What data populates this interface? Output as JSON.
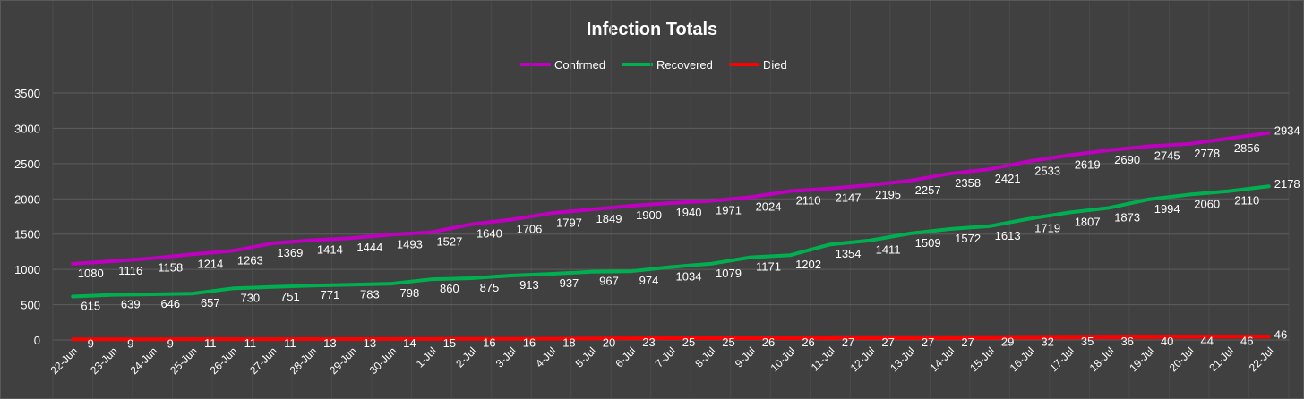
{
  "chart_data": {
    "type": "line",
    "title": "Infection Totals",
    "xlabel": "",
    "ylabel": "",
    "ylim": [
      0,
      3500
    ],
    "yticks": [
      0,
      500,
      1000,
      1500,
      2000,
      2500,
      3000,
      3500
    ],
    "grid": true,
    "legend_position": "top",
    "categories": [
      "22-Jun",
      "23-Jun",
      "24-Jun",
      "25-Jun",
      "26-Jun",
      "27-Jun",
      "28-Jun",
      "29-Jun",
      "30-Jun",
      "1-Jul",
      "2-Jul",
      "3-Jul",
      "4-Jul",
      "5-Jul",
      "6-Jul",
      "7-Jul",
      "8-Jul",
      "9-Jul",
      "10-Jul",
      "11-Jul",
      "12-Jul",
      "13-Jul",
      "14-Jul",
      "15-Jul",
      "16-Jul",
      "17-Jul",
      "18-Jul",
      "19-Jul",
      "20-Jul",
      "21-Jul",
      "22-Jul"
    ],
    "series": [
      {
        "name": "Confrmed",
        "color": "#c000c0",
        "values": [
          1080,
          1116,
          1158,
          1214,
          1263,
          1369,
          1414,
          1444,
          1493,
          1527,
          1640,
          1706,
          1797,
          1849,
          1900,
          1940,
          1971,
          2024,
          2110,
          2147,
          2195,
          2257,
          2358,
          2421,
          2533,
          2619,
          2690,
          2745,
          2778,
          2856,
          2934
        ]
      },
      {
        "name": "Recovered",
        "color": "#00b050",
        "values": [
          615,
          639,
          646,
          657,
          730,
          751,
          771,
          783,
          798,
          860,
          875,
          913,
          937,
          967,
          974,
          1034,
          1079,
          1171,
          1202,
          1354,
          1411,
          1509,
          1572,
          1613,
          1719,
          1807,
          1873,
          1994,
          2060,
          2110,
          2178
        ]
      },
      {
        "name": "Died",
        "color": "#ff0000",
        "values": [
          9,
          9,
          9,
          11,
          11,
          11,
          13,
          13,
          14,
          15,
          16,
          16,
          18,
          20,
          23,
          25,
          25,
          26,
          26,
          27,
          27,
          27,
          27,
          29,
          32,
          35,
          36,
          40,
          44,
          46,
          46
        ]
      }
    ]
  }
}
